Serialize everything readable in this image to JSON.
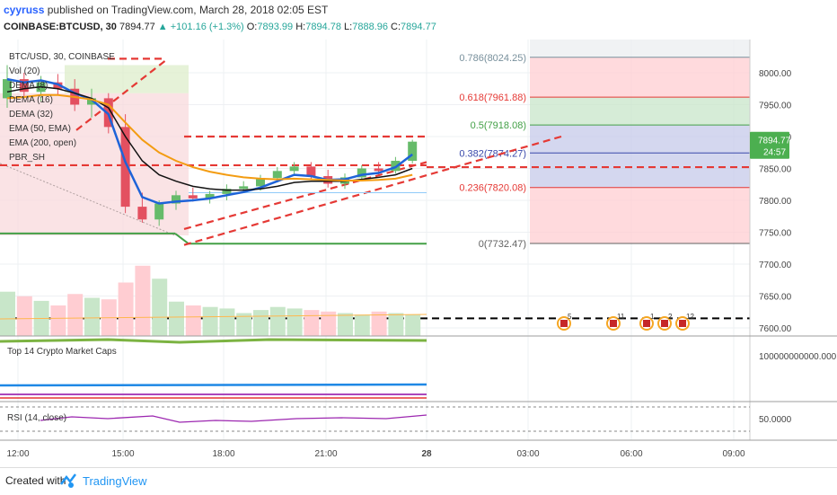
{
  "header": {
    "user": "cyyruss",
    "published": "published on TradingView.com, March 28, 2018 02:05 EST",
    "symbol": "COINBASE:BTCUSD, 30",
    "last": "7894.77",
    "change": "▲ +101.16 (+1.3%)",
    "open_label": "O:",
    "open": "7893.99",
    "high_label": "H:",
    "high": "7894.78",
    "low_label": "L:",
    "low": "7888.96",
    "close_label": "C:",
    "close": "7894.77"
  },
  "legend": [
    "BTC/USD, 30, COINBASE",
    "Vol (20)",
    "DEMA (8)",
    "DEMA (16)",
    "DEMA (32)",
    "EMA (50, EMA)",
    "EMA (200, open)",
    "PBR_SH"
  ],
  "price_badge": {
    "value": "7894.77",
    "countdown": "24:57"
  },
  "fib": [
    {
      "label": "0.786(8024.25)",
      "price": 8024.25,
      "color": "#78909c"
    },
    {
      "label": "0.618(7961.88)",
      "price": 7961.88,
      "color": "#e53935"
    },
    {
      "label": "0.5(7918.08)",
      "price": 7918.08,
      "color": "#43a047"
    },
    {
      "label": "0.382(7874.27)",
      "price": 7874.27,
      "color": "#3949ab"
    },
    {
      "label": "0.236(7820.08)",
      "price": 7820.08,
      "color": "#e53935"
    },
    {
      "label": "0(7732.47)",
      "price": 7732.47,
      "color": "#616161"
    }
  ],
  "y_ticks": [
    "8000.00",
    "7950.00",
    "7900.00",
    "7850.00",
    "7800.00",
    "7750.00",
    "7700.00",
    "7650.00",
    "7600.00"
  ],
  "x_ticks": [
    "12:00",
    "15:00",
    "18:00",
    "21:00",
    "28",
    "03:00",
    "06:00",
    "09:00"
  ],
  "events": [
    {
      "count": "5"
    },
    {
      "count": "11"
    },
    {
      "count": "1"
    },
    {
      "count": "2"
    },
    {
      "count": "12"
    }
  ],
  "panel2": {
    "title": "Top 14 Crypto Market Caps",
    "tick": "100000000000.000"
  },
  "panel3": {
    "title": "RSI (14, close)",
    "tick": "50.0000"
  },
  "footer": {
    "created": "Created with",
    "brand": "TradingView"
  },
  "chart_data": {
    "type": "candlestick",
    "x_range": [
      "12:00",
      "09:00"
    ],
    "ylim": [
      7590,
      8045
    ],
    "candles": [
      {
        "o": 7960,
        "h": 8012,
        "l": 7945,
        "c": 7990
      },
      {
        "o": 7990,
        "h": 8000,
        "l": 7960,
        "c": 7970
      },
      {
        "o": 7970,
        "h": 7995,
        "l": 7955,
        "c": 7985
      },
      {
        "o": 7985,
        "h": 7998,
        "l": 7965,
        "c": 7975
      },
      {
        "o": 7975,
        "h": 7990,
        "l": 7940,
        "c": 7950
      },
      {
        "o": 7950,
        "h": 7975,
        "l": 7930,
        "c": 7960
      },
      {
        "o": 7960,
        "h": 7968,
        "l": 7905,
        "c": 7915
      },
      {
        "o": 7915,
        "h": 7935,
        "l": 7780,
        "c": 7790
      },
      {
        "o": 7790,
        "h": 7812,
        "l": 7765,
        "c": 7770
      },
      {
        "o": 7770,
        "h": 7800,
        "l": 7760,
        "c": 7795
      },
      {
        "o": 7795,
        "h": 7815,
        "l": 7785,
        "c": 7808
      },
      {
        "o": 7808,
        "h": 7820,
        "l": 7798,
        "c": 7803
      },
      {
        "o": 7803,
        "h": 7815,
        "l": 7795,
        "c": 7810
      },
      {
        "o": 7810,
        "h": 7825,
        "l": 7800,
        "c": 7818
      },
      {
        "o": 7818,
        "h": 7830,
        "l": 7812,
        "c": 7822
      },
      {
        "o": 7822,
        "h": 7840,
        "l": 7815,
        "c": 7835
      },
      {
        "o": 7835,
        "h": 7852,
        "l": 7828,
        "c": 7846
      },
      {
        "o": 7846,
        "h": 7860,
        "l": 7838,
        "c": 7853
      },
      {
        "o": 7853,
        "h": 7860,
        "l": 7832,
        "c": 7838
      },
      {
        "o": 7838,
        "h": 7848,
        "l": 7820,
        "c": 7826
      },
      {
        "o": 7826,
        "h": 7842,
        "l": 7818,
        "c": 7836
      },
      {
        "o": 7836,
        "h": 7855,
        "l": 7830,
        "c": 7850
      },
      {
        "o": 7850,
        "h": 7860,
        "l": 7840,
        "c": 7846
      },
      {
        "o": 7846,
        "h": 7868,
        "l": 7842,
        "c": 7862
      },
      {
        "o": 7862,
        "h": 7895,
        "l": 7858,
        "c": 7892
      }
    ],
    "series": [
      {
        "values": [
          7990,
          7985,
          7988,
          7982,
          7968,
          7958,
          7935,
          7860,
          7805,
          7795,
          7798,
          7800,
          7803,
          7808,
          7813,
          7820,
          7830,
          7840,
          7838,
          7832,
          7833,
          7840,
          7843,
          7852,
          7872
        ]
      },
      {
        "values": [
          7970,
          7975,
          7978,
          7975,
          7968,
          7960,
          7945,
          7900,
          7862,
          7840,
          7830,
          7822,
          7818,
          7816,
          7816,
          7818,
          7822,
          7828,
          7830,
          7830,
          7830,
          7833,
          7836,
          7840,
          7850
        ]
      },
      {
        "values": [
          7960,
          7962,
          7965,
          7965,
          7962,
          7958,
          7950,
          7922,
          7895,
          7875,
          7862,
          7852,
          7845,
          7840,
          7836,
          7834,
          7833,
          7834,
          7833,
          7832,
          7831,
          7831,
          7832,
          7834,
          7840
        ]
      }
    ],
    "volume": [
      58,
      52,
      46,
      40,
      55,
      50,
      48,
      70,
      92,
      75,
      45,
      40,
      38,
      36,
      30,
      34,
      38,
      36,
      34,
      32,
      30,
      28,
      32,
      30,
      28
    ]
  }
}
